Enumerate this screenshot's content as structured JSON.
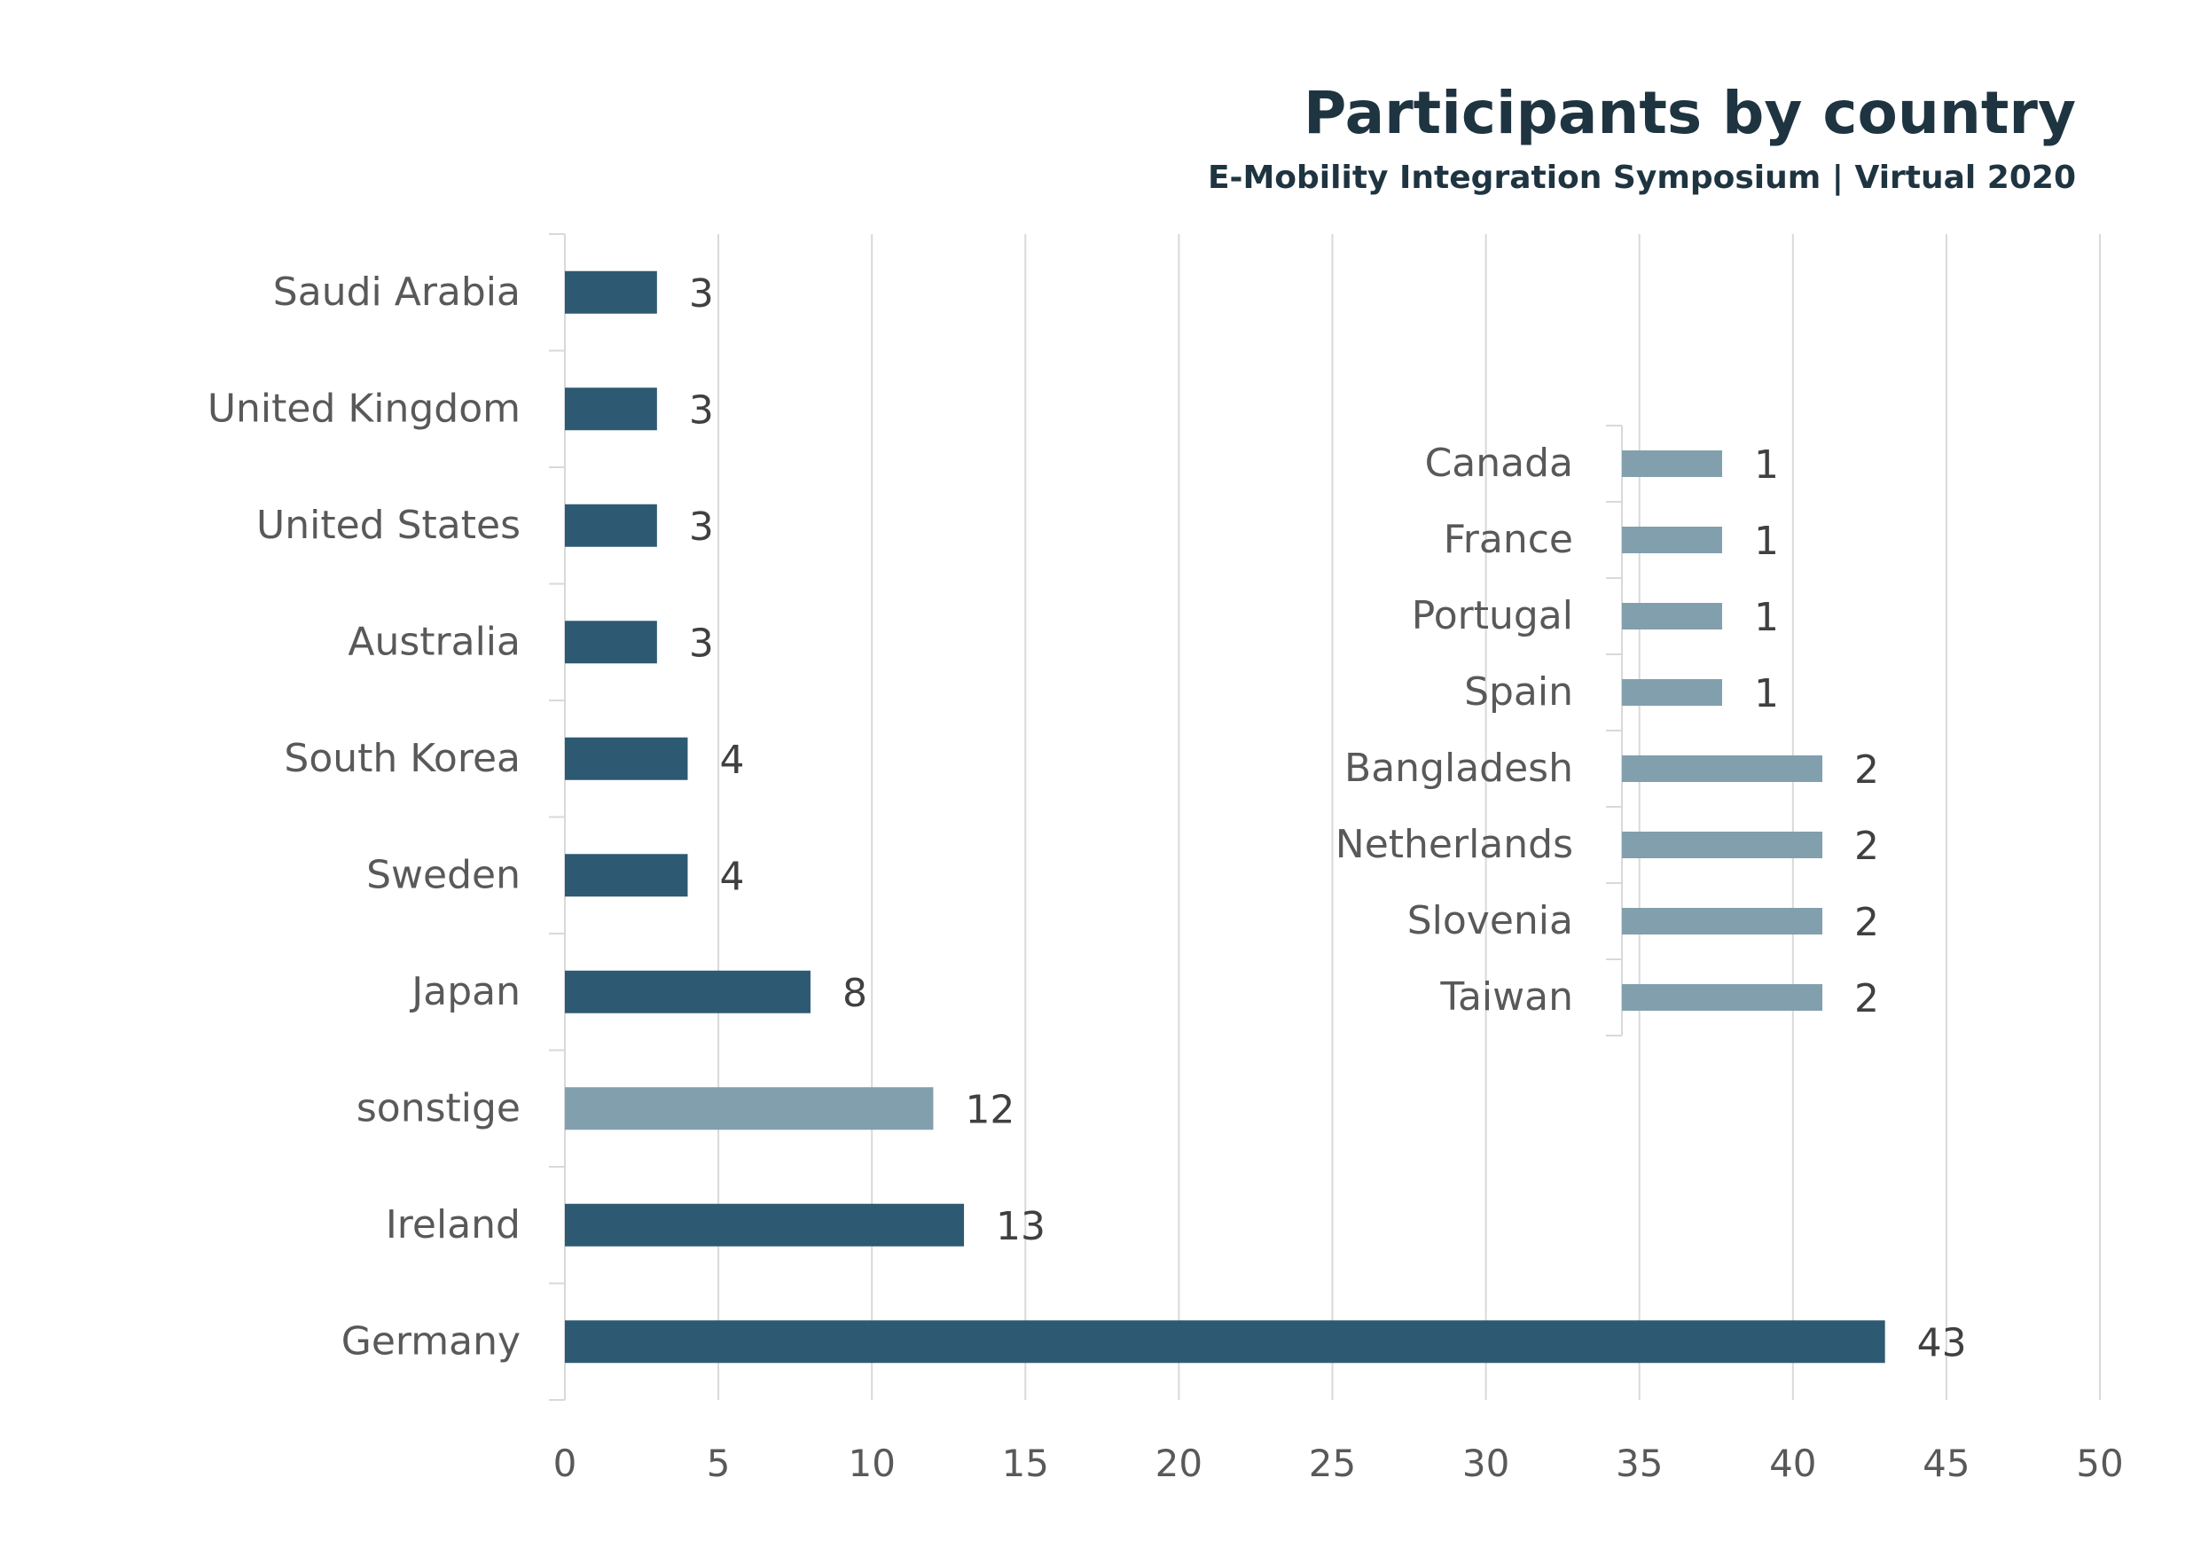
{
  "chart_data": [
    {
      "type": "bar",
      "orientation": "horizontal",
      "title": "Participants by country",
      "subtitle": "E-Mobility Integration Symposium | Virtual 2020",
      "categories": [
        "Saudi Arabia",
        "United Kingdom",
        "United States",
        "Australia",
        "South Korea",
        "Sweden",
        "Japan",
        "sonstige",
        "Ireland",
        "Germany"
      ],
      "values": [
        3,
        3,
        3,
        3,
        4,
        4,
        8,
        12,
        13,
        43
      ],
      "highlight_category": "sonstige",
      "xlim": [
        0,
        50
      ],
      "xticks": [
        "0",
        "5",
        "10",
        "15",
        "20",
        "25",
        "30",
        "35",
        "40",
        "45",
        "50"
      ],
      "grid": "vertical",
      "data_labels": true,
      "colors": {
        "primary": "#2d5a72",
        "other": "#829fad"
      }
    },
    {
      "type": "bar",
      "orientation": "horizontal",
      "categories": [
        "Canada",
        "France",
        "Portugal",
        "Spain",
        "Bangladesh",
        "Netherlands",
        "Slovenia",
        "Taiwan"
      ],
      "values": [
        1,
        1,
        1,
        1,
        2,
        2,
        2,
        2
      ],
      "data_labels": true,
      "colors": {
        "primary": "#829fad"
      }
    }
  ]
}
